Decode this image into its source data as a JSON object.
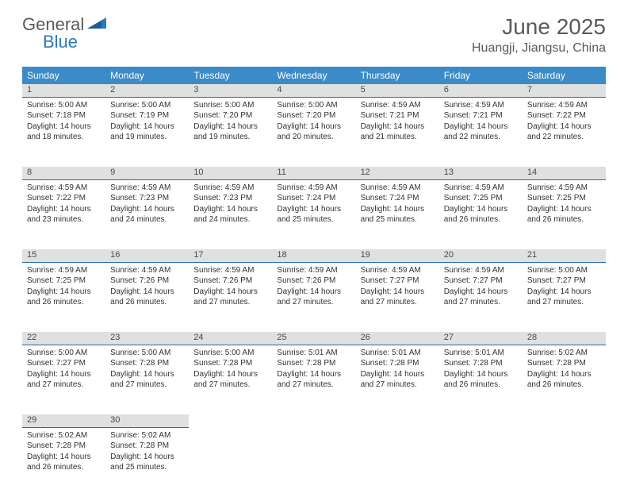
{
  "logo": {
    "part1": "General",
    "part2": "Blue"
  },
  "title": "June 2025",
  "location": "Huangji, Jiangsu, China",
  "colors": {
    "header_bg": "#3b8bc9",
    "header_text": "#ffffff",
    "daynum_bg": "#e0e0e0",
    "daynum_border": "#2a6aa5",
    "text": "#333333",
    "logo_gray": "#5a5a5a",
    "logo_blue": "#2a7ac0",
    "page_bg": "#ffffff"
  },
  "typography": {
    "title_fontsize": 28,
    "location_fontsize": 16,
    "header_fontsize": 12,
    "daynum_fontsize": 11,
    "cell_fontsize": 10
  },
  "weekdays": [
    "Sunday",
    "Monday",
    "Tuesday",
    "Wednesday",
    "Thursday",
    "Friday",
    "Saturday"
  ],
  "weeks": [
    [
      {
        "n": "1",
        "sr": "Sunrise: 5:00 AM",
        "ss": "Sunset: 7:18 PM",
        "d1": "Daylight: 14 hours",
        "d2": "and 18 minutes."
      },
      {
        "n": "2",
        "sr": "Sunrise: 5:00 AM",
        "ss": "Sunset: 7:19 PM",
        "d1": "Daylight: 14 hours",
        "d2": "and 19 minutes."
      },
      {
        "n": "3",
        "sr": "Sunrise: 5:00 AM",
        "ss": "Sunset: 7:20 PM",
        "d1": "Daylight: 14 hours",
        "d2": "and 19 minutes."
      },
      {
        "n": "4",
        "sr": "Sunrise: 5:00 AM",
        "ss": "Sunset: 7:20 PM",
        "d1": "Daylight: 14 hours",
        "d2": "and 20 minutes."
      },
      {
        "n": "5",
        "sr": "Sunrise: 4:59 AM",
        "ss": "Sunset: 7:21 PM",
        "d1": "Daylight: 14 hours",
        "d2": "and 21 minutes."
      },
      {
        "n": "6",
        "sr": "Sunrise: 4:59 AM",
        "ss": "Sunset: 7:21 PM",
        "d1": "Daylight: 14 hours",
        "d2": "and 22 minutes."
      },
      {
        "n": "7",
        "sr": "Sunrise: 4:59 AM",
        "ss": "Sunset: 7:22 PM",
        "d1": "Daylight: 14 hours",
        "d2": "and 22 minutes."
      }
    ],
    [
      {
        "n": "8",
        "sr": "Sunrise: 4:59 AM",
        "ss": "Sunset: 7:22 PM",
        "d1": "Daylight: 14 hours",
        "d2": "and 23 minutes."
      },
      {
        "n": "9",
        "sr": "Sunrise: 4:59 AM",
        "ss": "Sunset: 7:23 PM",
        "d1": "Daylight: 14 hours",
        "d2": "and 24 minutes."
      },
      {
        "n": "10",
        "sr": "Sunrise: 4:59 AM",
        "ss": "Sunset: 7:23 PM",
        "d1": "Daylight: 14 hours",
        "d2": "and 24 minutes."
      },
      {
        "n": "11",
        "sr": "Sunrise: 4:59 AM",
        "ss": "Sunset: 7:24 PM",
        "d1": "Daylight: 14 hours",
        "d2": "and 25 minutes."
      },
      {
        "n": "12",
        "sr": "Sunrise: 4:59 AM",
        "ss": "Sunset: 7:24 PM",
        "d1": "Daylight: 14 hours",
        "d2": "and 25 minutes."
      },
      {
        "n": "13",
        "sr": "Sunrise: 4:59 AM",
        "ss": "Sunset: 7:25 PM",
        "d1": "Daylight: 14 hours",
        "d2": "and 26 minutes."
      },
      {
        "n": "14",
        "sr": "Sunrise: 4:59 AM",
        "ss": "Sunset: 7:25 PM",
        "d1": "Daylight: 14 hours",
        "d2": "and 26 minutes."
      }
    ],
    [
      {
        "n": "15",
        "sr": "Sunrise: 4:59 AM",
        "ss": "Sunset: 7:25 PM",
        "d1": "Daylight: 14 hours",
        "d2": "and 26 minutes."
      },
      {
        "n": "16",
        "sr": "Sunrise: 4:59 AM",
        "ss": "Sunset: 7:26 PM",
        "d1": "Daylight: 14 hours",
        "d2": "and 26 minutes."
      },
      {
        "n": "17",
        "sr": "Sunrise: 4:59 AM",
        "ss": "Sunset: 7:26 PM",
        "d1": "Daylight: 14 hours",
        "d2": "and 27 minutes."
      },
      {
        "n": "18",
        "sr": "Sunrise: 4:59 AM",
        "ss": "Sunset: 7:26 PM",
        "d1": "Daylight: 14 hours",
        "d2": "and 27 minutes."
      },
      {
        "n": "19",
        "sr": "Sunrise: 4:59 AM",
        "ss": "Sunset: 7:27 PM",
        "d1": "Daylight: 14 hours",
        "d2": "and 27 minutes."
      },
      {
        "n": "20",
        "sr": "Sunrise: 4:59 AM",
        "ss": "Sunset: 7:27 PM",
        "d1": "Daylight: 14 hours",
        "d2": "and 27 minutes."
      },
      {
        "n": "21",
        "sr": "Sunrise: 5:00 AM",
        "ss": "Sunset: 7:27 PM",
        "d1": "Daylight: 14 hours",
        "d2": "and 27 minutes."
      }
    ],
    [
      {
        "n": "22",
        "sr": "Sunrise: 5:00 AM",
        "ss": "Sunset: 7:27 PM",
        "d1": "Daylight: 14 hours",
        "d2": "and 27 minutes."
      },
      {
        "n": "23",
        "sr": "Sunrise: 5:00 AM",
        "ss": "Sunset: 7:28 PM",
        "d1": "Daylight: 14 hours",
        "d2": "and 27 minutes."
      },
      {
        "n": "24",
        "sr": "Sunrise: 5:00 AM",
        "ss": "Sunset: 7:28 PM",
        "d1": "Daylight: 14 hours",
        "d2": "and 27 minutes."
      },
      {
        "n": "25",
        "sr": "Sunrise: 5:01 AM",
        "ss": "Sunset: 7:28 PM",
        "d1": "Daylight: 14 hours",
        "d2": "and 27 minutes."
      },
      {
        "n": "26",
        "sr": "Sunrise: 5:01 AM",
        "ss": "Sunset: 7:28 PM",
        "d1": "Daylight: 14 hours",
        "d2": "and 27 minutes."
      },
      {
        "n": "27",
        "sr": "Sunrise: 5:01 AM",
        "ss": "Sunset: 7:28 PM",
        "d1": "Daylight: 14 hours",
        "d2": "and 26 minutes."
      },
      {
        "n": "28",
        "sr": "Sunrise: 5:02 AM",
        "ss": "Sunset: 7:28 PM",
        "d1": "Daylight: 14 hours",
        "d2": "and 26 minutes."
      }
    ],
    [
      {
        "n": "29",
        "sr": "Sunrise: 5:02 AM",
        "ss": "Sunset: 7:28 PM",
        "d1": "Daylight: 14 hours",
        "d2": "and 26 minutes."
      },
      {
        "n": "30",
        "sr": "Sunrise: 5:02 AM",
        "ss": "Sunset: 7:28 PM",
        "d1": "Daylight: 14 hours",
        "d2": "and 25 minutes."
      },
      null,
      null,
      null,
      null,
      null
    ]
  ]
}
